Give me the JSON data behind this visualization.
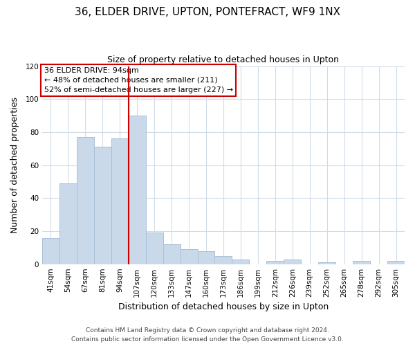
{
  "title": "36, ELDER DRIVE, UPTON, PONTEFRACT, WF9 1NX",
  "subtitle": "Size of property relative to detached houses in Upton",
  "xlabel": "Distribution of detached houses by size in Upton",
  "ylabel": "Number of detached properties",
  "categories": [
    "41sqm",
    "54sqm",
    "67sqm",
    "81sqm",
    "94sqm",
    "107sqm",
    "120sqm",
    "133sqm",
    "147sqm",
    "160sqm",
    "173sqm",
    "186sqm",
    "199sqm",
    "212sqm",
    "226sqm",
    "239sqm",
    "252sqm",
    "265sqm",
    "278sqm",
    "292sqm",
    "305sqm"
  ],
  "values": [
    16,
    49,
    77,
    71,
    76,
    90,
    19,
    12,
    9,
    8,
    5,
    3,
    0,
    2,
    3,
    0,
    1,
    0,
    2,
    0,
    2
  ],
  "bar_color": "#c9d9ea",
  "bar_edge_color": "#a8c0d8",
  "vline_x_index": 4,
  "marker_label": "36 ELDER DRIVE: 94sqm",
  "annotation_line1": "← 48% of detached houses are smaller (211)",
  "annotation_line2": "52% of semi-detached houses are larger (227) →",
  "annotation_box_edge": "#cc0000",
  "annotation_box_bg": "#ffffff",
  "vline_color": "#cc0000",
  "ylim": [
    0,
    120
  ],
  "yticks": [
    0,
    20,
    40,
    60,
    80,
    100,
    120
  ],
  "footer1": "Contains HM Land Registry data © Crown copyright and database right 2024.",
  "footer2": "Contains public sector information licensed under the Open Government Licence v3.0.",
  "background_color": "#ffffff",
  "grid_color": "#d0dce8",
  "title_fontsize": 11,
  "subtitle_fontsize": 9,
  "axis_label_fontsize": 9,
  "tick_fontsize": 7.5,
  "annotation_fontsize": 8,
  "footer_fontsize": 6.5
}
